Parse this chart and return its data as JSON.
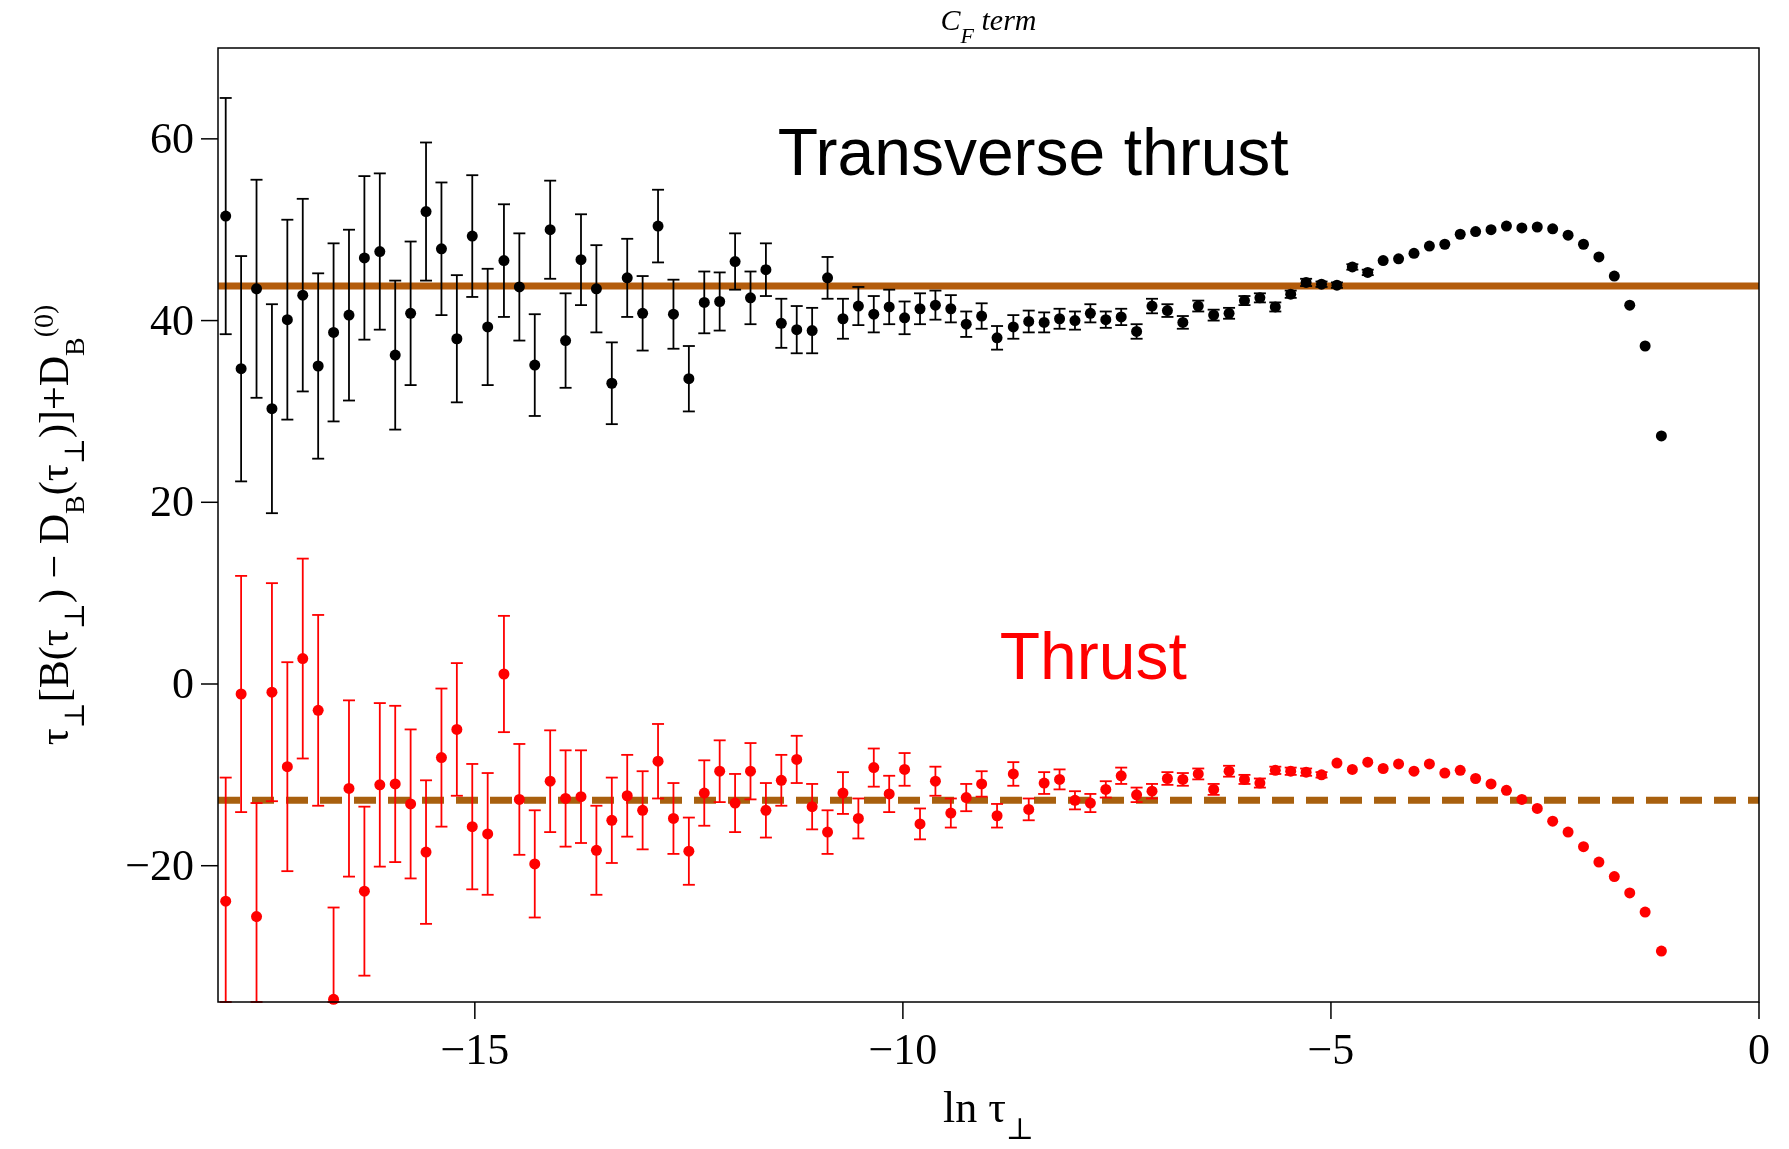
{
  "chart_data": {
    "type": "scatter",
    "title": "C$_{F}$ term",
    "xlabel": "ln τ$_{⊥}$",
    "ylabel": "τ$_{⊥}$[B(τ$_{⊥}$) − D$_{B}$(τ$_{⊥}$)]+D$_{B}$$^{(0)}$",
    "x": [
      -17.91,
      -17.73,
      -17.55,
      -17.37,
      -17.19,
      -17.01,
      -16.83,
      -16.65,
      -16.47,
      -16.29,
      -16.11,
      -15.93,
      -15.75,
      -15.57,
      -15.39,
      -15.21,
      -15.03,
      -14.85,
      -14.66,
      -14.48,
      -14.3,
      -14.12,
      -13.94,
      -13.76,
      -13.58,
      -13.4,
      -13.22,
      -13.04,
      -12.86,
      -12.68,
      -12.5,
      -12.32,
      -12.14,
      -11.96,
      -11.78,
      -11.6,
      -11.42,
      -11.24,
      -11.06,
      -10.88,
      -10.7,
      -10.52,
      -10.34,
      -10.16,
      -9.98,
      -9.8,
      -9.62,
      -9.44,
      -9.26,
      -9.08,
      -8.9,
      -8.71,
      -8.53,
      -8.35,
      -8.17,
      -7.99,
      -7.81,
      -7.63,
      -7.45,
      -7.27,
      -7.09,
      -6.91,
      -6.73,
      -6.55,
      -6.37,
      -6.19,
      -6.01,
      -5.83,
      -5.65,
      -5.47,
      -5.29,
      -5.11,
      -4.93,
      -4.75,
      -4.57,
      -4.39,
      -4.21,
      -4.03,
      -3.85,
      -3.67,
      -3.49,
      -3.31,
      -3.13,
      -2.95,
      -2.77,
      -2.59,
      -2.41,
      -2.23,
      -2.05,
      -1.87,
      -1.69,
      -1.51,
      -1.33,
      -1.14
    ],
    "series": [
      {
        "name": "Transverse thrust",
        "color": "#000000",
        "values": [
          51.5,
          34.7,
          43.5,
          30.3,
          40.1,
          42.8,
          35.0,
          38.7,
          40.6,
          46.9,
          47.6,
          36.2,
          40.8,
          52.0,
          47.9,
          38.0,
          49.3,
          39.3,
          46.6,
          43.7,
          35.1,
          50.0,
          37.8,
          46.7,
          43.5,
          33.1,
          44.7,
          40.8,
          50.4,
          40.7,
          33.6,
          42.0,
          42.1,
          46.5,
          42.5,
          45.6,
          39.7,
          39.0,
          38.9,
          44.7,
          40.2,
          41.6,
          40.7,
          41.5,
          40.3,
          41.3,
          41.7,
          41.3,
          39.6,
          40.5,
          38.1,
          39.3,
          39.9,
          39.8,
          40.2,
          40.0,
          40.8,
          40.1,
          40.4,
          38.8,
          41.6,
          41.1,
          39.8,
          41.6,
          40.6,
          40.8,
          42.2,
          42.5,
          41.5,
          42.9,
          44.2,
          44.0,
          43.9,
          45.9,
          45.3,
          46.6,
          46.8,
          47.4,
          48.2,
          48.4,
          49.5,
          49.8,
          50.0,
          50.4,
          50.2,
          50.3,
          50.1,
          49.4,
          48.4,
          47.0,
          44.9,
          41.7,
          37.2,
          27.3
        ],
        "errors": [
          13,
          12.4,
          12,
          11.5,
          11,
          10.6,
          10.2,
          9.8,
          9.4,
          9,
          8.6,
          8.2,
          7.9,
          7.6,
          7.3,
          7.0,
          6.7,
          6.4,
          6.2,
          5.9,
          5.6,
          5.4,
          5.2,
          5,
          4.8,
          4.5,
          4.3,
          4.1,
          4,
          3.8,
          3.6,
          3.4,
          3.2,
          3.1,
          2.9,
          2.9,
          2.7,
          2.6,
          2.5,
          2.3,
          2.2,
          2.1,
          2.0,
          1.9,
          1.8,
          1.7,
          1.6,
          1.5,
          1.4,
          1.4,
          1.3,
          1.3,
          1.2,
          1.1,
          1.1,
          1.0,
          1.0,
          0.9,
          0.9,
          0.8,
          0.8,
          0.7,
          0.7,
          0.6,
          0.6,
          0.6,
          0.5,
          0.5,
          0.5,
          0.4,
          0.4,
          0.3,
          0.3,
          0.3,
          0.3,
          null,
          null,
          null,
          null,
          null,
          null,
          null,
          null,
          null,
          null,
          null,
          null,
          null,
          null,
          null,
          null,
          null,
          null,
          null
        ]
      },
      {
        "name": "Thrust",
        "color": "#ff0000",
        "values": [
          -23.9,
          -1.1,
          -25.6,
          -0.9,
          -9.1,
          2.8,
          -2.9,
          -34.7,
          -11.5,
          -22.8,
          -11.1,
          -11.0,
          -13.2,
          -18.5,
          -8.1,
          -5.0,
          -15.7,
          -16.5,
          1.1,
          -12.7,
          -19.8,
          -10.7,
          -12.6,
          -12.4,
          -18.3,
          -15.0,
          -12.3,
          -13.9,
          -8.5,
          -14.8,
          -18.4,
          -12.0,
          -9.6,
          -13.1,
          -9.6,
          -13.9,
          -10.6,
          -8.3,
          -13.5,
          -16.3,
          -12.0,
          -14.8,
          -9.2,
          -12.1,
          -9.4,
          -15.4,
          -10.7,
          -14.2,
          -12.5,
          -11.0,
          -14.5,
          -9.9,
          -13.8,
          -10.9,
          -10.5,
          -12.8,
          -13.1,
          -11.6,
          -10.1,
          -12.2,
          -11.8,
          -10.4,
          -10.5,
          -9.9,
          -11.6,
          -9.6,
          -10.5,
          -10.9,
          -9.5,
          -9.6,
          -9.7,
          -10.0,
          -8.7,
          -9.4,
          -8.6,
          -9.3,
          -8.8,
          -9.6,
          -8.8,
          -9.8,
          -9.5,
          -10.4,
          -11.0,
          -11.7,
          -12.7,
          -13.7,
          -15.1,
          -16.3,
          -17.9,
          -19.6,
          -21.2,
          -23.0,
          -25.1,
          -29.4
        ],
        "errors": [
          [
            -35,
            -10.3
          ],
          13,
          [
            -35,
            -13.1
          ],
          12,
          11.5,
          11,
          10.5,
          [
            -35,
            -24.6
          ],
          9.7,
          9.3,
          9,
          8.6,
          8.2,
          7.9,
          7.6,
          7.3,
          6.9,
          6.7,
          6.4,
          6.1,
          5.9,
          5.6,
          5.3,
          5.1,
          4.9,
          4.7,
          4.5,
          4.3,
          4.1,
          3.9,
          3.7,
          3.6,
          3.4,
          3.2,
          3.1,
          3,
          2.8,
          2.6,
          2.5,
          2.4,
          2.3,
          2.2,
          2.1,
          2.0,
          1.8,
          1.7,
          1.6,
          1.6,
          1.5,
          1.4,
          1.3,
          1.3,
          1.2,
          1.2,
          1.1,
          1.0,
          1.0,
          0.9,
          0.9,
          0.8,
          0.8,
          0.7,
          0.7,
          0.6,
          0.6,
          0.6,
          0.5,
          0.5,
          0.4,
          0.4,
          0.4,
          0.3,
          null,
          null,
          null,
          null,
          null,
          null,
          null,
          null,
          null,
          null,
          null,
          null,
          null,
          null,
          null,
          null,
          null,
          null,
          null,
          null,
          null,
          null
        ]
      }
    ],
    "xlim": [
      -18,
      0
    ],
    "xticks": [
      -15,
      -10,
      -5,
      0
    ],
    "ylim": [
      -35,
      70
    ],
    "yticks": [
      -20,
      0,
      20,
      40,
      60
    ],
    "ref_lines": [
      {
        "axis": "y",
        "value": 43.8,
        "color": "#b35c0c",
        "line_style": "solid"
      },
      {
        "axis": "y",
        "value": -12.8,
        "color": "#a8600e",
        "line_style": "dashed"
      }
    ],
    "marker": "circle",
    "grid": false
  }
}
